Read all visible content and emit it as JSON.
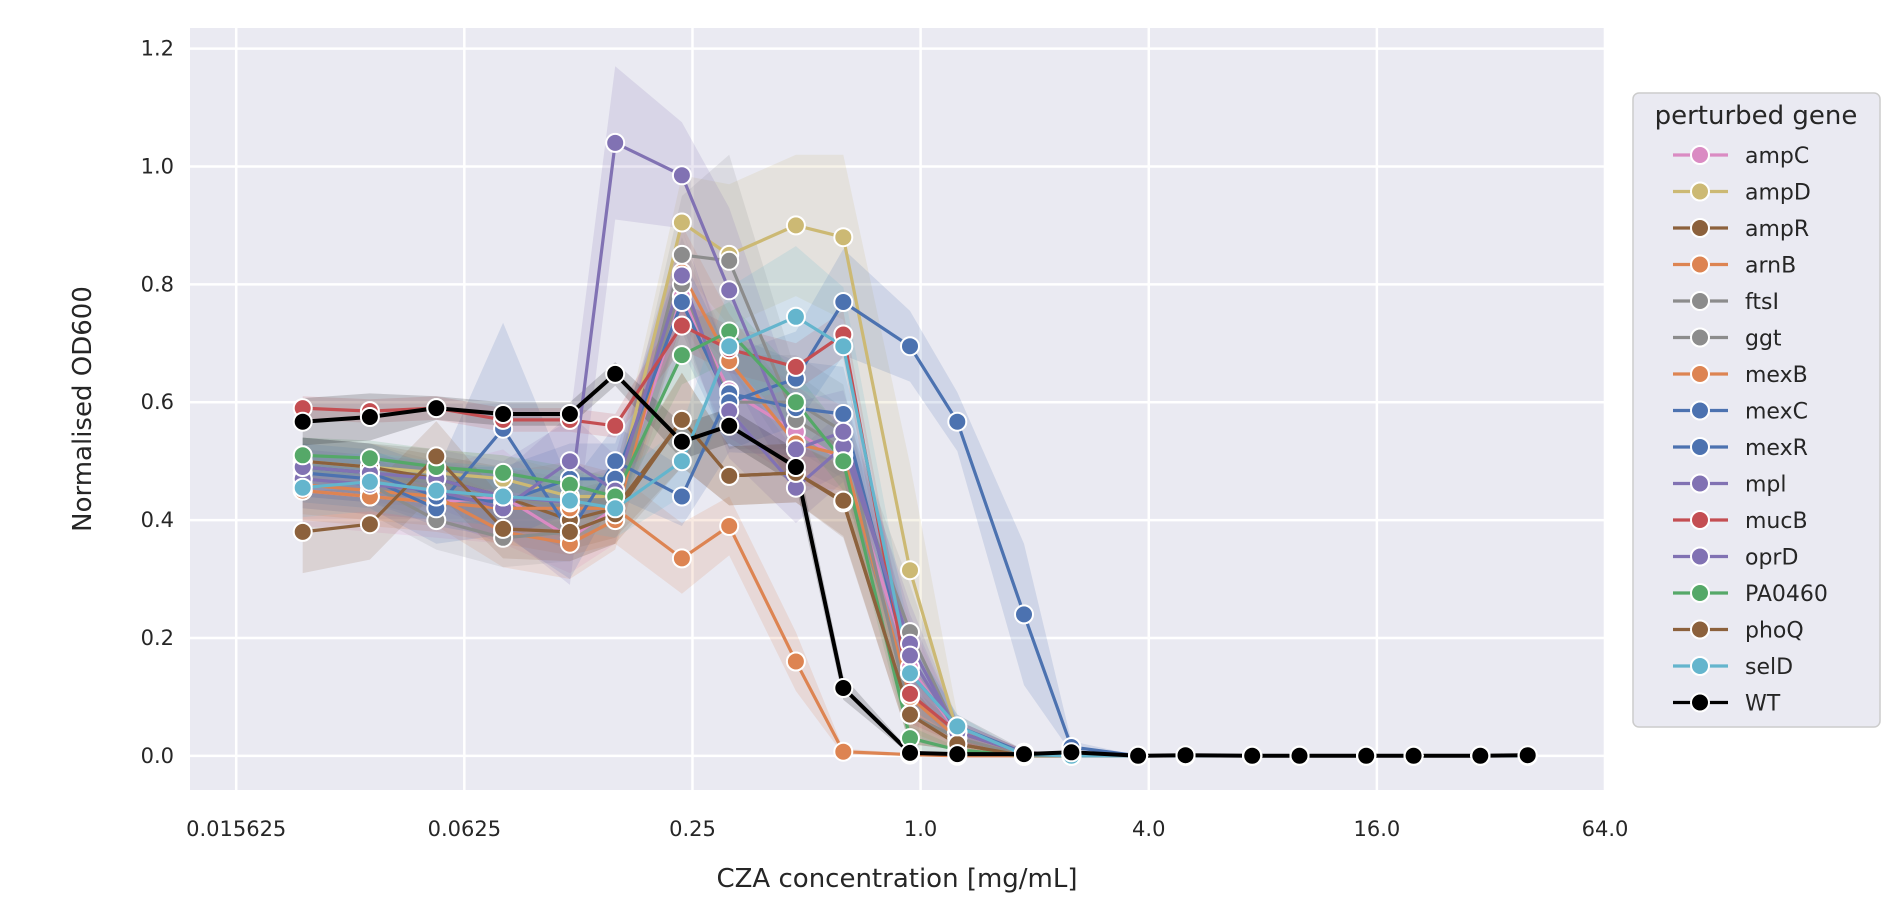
{
  "chart_data": {
    "type": "line",
    "title": "",
    "xlabel": "CZA concentration [mg/mL]",
    "ylabel": "Normalised OD600",
    "x_scale": "log2",
    "xlim": [
      0.0118,
      64
    ],
    "ylim": [
      -0.058,
      1.235
    ],
    "x_ticks": [
      0.015625,
      0.0625,
      0.25,
      1.0,
      4.0,
      16.0,
      64.0
    ],
    "x_tick_labels": [
      "0.015625",
      "0.0625",
      "0.25",
      "1.0",
      "4.0",
      "16.0",
      "64.0"
    ],
    "y_ticks": [
      0.0,
      0.2,
      0.4,
      0.6,
      0.8,
      1.0,
      1.2
    ],
    "y_tick_labels": [
      "0.0",
      "0.2",
      "0.4",
      "0.6",
      "0.8",
      "1.0",
      "1.2"
    ],
    "grid": true,
    "background": "#eaeaf2",
    "legend": {
      "title": "perturbed gene",
      "placement": "right, outside plot"
    },
    "x": [
      0.0234,
      0.0352,
      0.0527,
      0.0791,
      0.1187,
      0.1563,
      0.2344,
      0.3125,
      0.4688,
      0.625,
      0.9375,
      1.25,
      1.875,
      2.5,
      3.75,
      5.0,
      7.5,
      10.0,
      15.0,
      20.0,
      30.0,
      40.0
    ],
    "series": [
      {
        "name": "ampC",
        "color": "#da8bc3",
        "values": [
          0.45,
          0.44,
          0.43,
          0.44,
          0.37,
          0.42,
          0.78,
          0.62,
          0.55,
          0.5,
          0.15,
          0.04,
          0.005,
          0.0,
          0.0,
          0.0,
          0.0,
          0.0,
          0.0,
          0.0,
          0.0,
          0.0
        ],
        "band": [
          0.06,
          0.06,
          0.06,
          0.08,
          0.06,
          0.06,
          0.08,
          0.08,
          0.08,
          0.06,
          0.08,
          0.02,
          0.005,
          0.0,
          0.0,
          0.0,
          0.0,
          0.0,
          0.0,
          0.0,
          0.0,
          0.0
        ]
      },
      {
        "name": "ampD",
        "color": "#ccb974",
        "values": [
          0.5,
          0.49,
          0.48,
          0.47,
          0.44,
          0.44,
          0.905,
          0.85,
          0.9,
          0.88,
          0.315,
          0.04,
          0.005,
          0.0,
          0.0,
          0.0,
          0.0,
          0.0,
          0.0,
          0.0,
          0.0,
          0.0
        ],
        "band": [
          0.04,
          0.04,
          0.04,
          0.04,
          0.04,
          0.04,
          0.08,
          0.12,
          0.12,
          0.14,
          0.18,
          0.03,
          0.005,
          0.0,
          0.0,
          0.0,
          0.0,
          0.0,
          0.0,
          0.0,
          0.0,
          0.0
        ]
      },
      {
        "name": "ampR",
        "color": "#8c613c",
        "values": [
          0.5,
          0.49,
          0.47,
          0.44,
          0.4,
          0.42,
          0.57,
          0.475,
          0.48,
          0.43,
          0.07,
          0.02,
          0.0,
          0.0,
          0.0,
          0.0,
          0.0,
          0.0,
          0.0,
          0.0,
          0.0,
          0.0
        ],
        "band": [
          0.04,
          0.04,
          0.04,
          0.05,
          0.05,
          0.05,
          0.08,
          0.05,
          0.05,
          0.06,
          0.05,
          0.01,
          0.0,
          0.0,
          0.0,
          0.0,
          0.0,
          0.0,
          0.0,
          0.0,
          0.0,
          0.0
        ]
      },
      {
        "name": "arnB",
        "color": "#dd8452",
        "values": [
          0.46,
          0.45,
          0.44,
          0.38,
          0.36,
          0.4,
          0.82,
          0.67,
          0.53,
          0.51,
          0.1,
          0.03,
          0.0,
          0.0,
          0.0,
          0.0,
          0.0,
          0.0,
          0.0,
          0.0,
          0.0,
          0.0
        ],
        "band": [
          0.05,
          0.05,
          0.05,
          0.06,
          0.06,
          0.05,
          0.08,
          0.08,
          0.07,
          0.06,
          0.06,
          0.02,
          0.0,
          0.0,
          0.0,
          0.0,
          0.0,
          0.0,
          0.0,
          0.0,
          0.0,
          0.0
        ]
      },
      {
        "name": "ftsI",
        "color": "#8c8c8c",
        "values": [
          0.47,
          0.46,
          0.4,
          0.37,
          0.38,
          0.41,
          0.85,
          0.84,
          0.57,
          0.52,
          0.21,
          0.04,
          0.005,
          0.0,
          0.0,
          0.0,
          0.0,
          0.0,
          0.0,
          0.0,
          0.0,
          0.0
        ],
        "band": [
          0.05,
          0.05,
          0.05,
          0.05,
          0.05,
          0.05,
          0.1,
          0.18,
          0.08,
          0.07,
          0.08,
          0.02,
          0.005,
          0.0,
          0.0,
          0.0,
          0.0,
          0.0,
          0.0,
          0.0,
          0.0,
          0.0
        ]
      },
      {
        "name": "ggt",
        "color": "#8c8c8c",
        "values": [
          0.49,
          0.48,
          0.45,
          0.44,
          0.42,
          0.44,
          0.8,
          0.6,
          0.6,
          0.55,
          0.07,
          0.03,
          0.0,
          0.0,
          0.0,
          0.0,
          0.0,
          0.0,
          0.0,
          0.0,
          0.0,
          0.0
        ],
        "band": [
          0.05,
          0.05,
          0.05,
          0.05,
          0.05,
          0.05,
          0.08,
          0.08,
          0.08,
          0.08,
          0.05,
          0.02,
          0.0,
          0.0,
          0.0,
          0.0,
          0.0,
          0.0,
          0.0,
          0.0,
          0.0,
          0.0
        ]
      },
      {
        "name": "mexB",
        "color": "#dd8452",
        "values": [
          0.45,
          0.44,
          0.43,
          0.42,
          0.42,
          0.42,
          0.335,
          0.39,
          0.16,
          0.007,
          0.002,
          0.0,
          0.0,
          0.0,
          0.0,
          0.0,
          0.0,
          0.0,
          0.0,
          0.0,
          0.0,
          0.0
        ],
        "band": [
          0.05,
          0.05,
          0.05,
          0.06,
          0.08,
          0.06,
          0.06,
          0.05,
          0.05,
          0.005,
          0.002,
          0.0,
          0.0,
          0.0,
          0.0,
          0.0,
          0.0,
          0.0,
          0.0,
          0.0,
          0.0,
          0.0
        ]
      },
      {
        "name": "mexC",
        "color": "#4c72b0",
        "values": [
          0.48,
          0.47,
          0.42,
          0.555,
          0.38,
          0.5,
          0.44,
          0.615,
          0.59,
          0.58,
          0.14,
          0.05,
          0.005,
          0.0,
          0.0,
          0.0,
          0.0,
          0.0,
          0.0,
          0.0,
          0.0,
          0.0
        ],
        "band": [
          0.05,
          0.05,
          0.06,
          0.18,
          0.08,
          0.06,
          0.05,
          0.1,
          0.08,
          0.08,
          0.06,
          0.02,
          0.005,
          0.0,
          0.0,
          0.0,
          0.0,
          0.0,
          0.0,
          0.0,
          0.0,
          0.0
        ]
      },
      {
        "name": "mexR",
        "color": "#4c72b0",
        "values": [
          0.49,
          0.48,
          0.44,
          0.43,
          0.47,
          0.47,
          0.77,
          0.6,
          0.64,
          0.77,
          0.695,
          0.567,
          0.24,
          0.015,
          0.0,
          0.0,
          0.0,
          0.0,
          0.0,
          0.0,
          0.0,
          0.0
        ],
        "band": [
          0.05,
          0.05,
          0.05,
          0.06,
          0.06,
          0.06,
          0.08,
          0.08,
          0.08,
          0.09,
          0.06,
          0.05,
          0.12,
          0.01,
          0.0,
          0.0,
          0.0,
          0.0,
          0.0,
          0.0,
          0.0,
          0.0
        ]
      },
      {
        "name": "mpl",
        "color": "#8172b3",
        "values": [
          0.47,
          0.46,
          0.45,
          0.42,
          0.5,
          0.45,
          0.815,
          0.585,
          0.455,
          0.525,
          0.19,
          0.04,
          0.005,
          0.0,
          0.0,
          0.0,
          0.0,
          0.0,
          0.0,
          0.0,
          0.0,
          0.0
        ],
        "band": [
          0.05,
          0.05,
          0.05,
          0.06,
          0.08,
          0.06,
          0.08,
          0.08,
          0.06,
          0.06,
          0.07,
          0.02,
          0.005,
          0.0,
          0.0,
          0.0,
          0.0,
          0.0,
          0.0,
          0.0,
          0.0,
          0.0
        ]
      },
      {
        "name": "mucB",
        "color": "#c44e52",
        "values": [
          0.59,
          0.585,
          0.59,
          0.57,
          0.57,
          0.56,
          0.73,
          0.69,
          0.66,
          0.715,
          0.105,
          0.04,
          0.005,
          0.0,
          0.0,
          0.0,
          0.0,
          0.0,
          0.0,
          0.0,
          0.0,
          0.0
        ],
        "band": [
          0.02,
          0.02,
          0.02,
          0.02,
          0.02,
          0.02,
          0.04,
          0.04,
          0.04,
          0.04,
          0.05,
          0.02,
          0.005,
          0.0,
          0.0,
          0.0,
          0.0,
          0.0,
          0.0,
          0.0,
          0.0,
          0.0
        ]
      },
      {
        "name": "oprD",
        "color": "#8172b3",
        "values": [
          0.49,
          0.48,
          0.47,
          0.44,
          0.43,
          1.04,
          0.985,
          0.79,
          0.52,
          0.55,
          0.17,
          0.04,
          0.005,
          0.0,
          0.0,
          0.0,
          0.0,
          0.0,
          0.0,
          0.0,
          0.0,
          0.0
        ],
        "band": [
          0.05,
          0.05,
          0.05,
          0.06,
          0.14,
          0.13,
          0.09,
          0.14,
          0.08,
          0.07,
          0.07,
          0.02,
          0.005,
          0.0,
          0.0,
          0.0,
          0.0,
          0.0,
          0.0,
          0.0,
          0.0,
          0.0
        ]
      },
      {
        "name": "PA0460",
        "color": "#55a868",
        "values": [
          0.51,
          0.505,
          0.49,
          0.48,
          0.46,
          0.44,
          0.68,
          0.72,
          0.6,
          0.5,
          0.03,
          0.01,
          0.0,
          0.0,
          0.0,
          0.0,
          0.0,
          0.0,
          0.0,
          0.0,
          0.0,
          0.0
        ],
        "band": [
          0.03,
          0.03,
          0.03,
          0.03,
          0.03,
          0.03,
          0.05,
          0.05,
          0.05,
          0.05,
          0.02,
          0.005,
          0.0,
          0.0,
          0.0,
          0.0,
          0.0,
          0.0,
          0.0,
          0.0,
          0.0,
          0.0
        ]
      },
      {
        "name": "phoQ",
        "color": "#8c613c",
        "values": [
          0.38,
          0.393,
          0.508,
          0.385,
          0.38,
          0.41,
          0.57,
          0.475,
          0.48,
          0.433,
          0.07,
          0.02,
          0.0,
          0.0,
          0.0,
          0.0,
          0.0,
          0.0,
          0.0,
          0.0,
          0.0,
          0.0
        ],
        "band": [
          0.07,
          0.06,
          0.06,
          0.05,
          0.05,
          0.05,
          0.08,
          0.05,
          0.05,
          0.06,
          0.05,
          0.01,
          0.0,
          0.0,
          0.0,
          0.0,
          0.0,
          0.0,
          0.0,
          0.0,
          0.0,
          0.0
        ]
      },
      {
        "name": "selD",
        "color": "#64b5cd",
        "values": [
          0.455,
          0.465,
          0.45,
          0.44,
          0.433,
          0.42,
          0.5,
          0.695,
          0.745,
          0.695,
          0.14,
          0.05,
          0.002,
          0.0,
          0.0,
          0.0,
          0.0,
          0.0,
          0.0,
          0.0,
          0.0,
          0.0
        ],
        "band": [
          0.05,
          0.05,
          0.05,
          0.05,
          0.05,
          0.05,
          0.06,
          0.1,
          0.12,
          0.1,
          0.06,
          0.02,
          0.002,
          0.0,
          0.0,
          0.0,
          0.0,
          0.0,
          0.0,
          0.0,
          0.0,
          0.0
        ]
      },
      {
        "name": "WT",
        "color": "#000000",
        "values": [
          0.567,
          0.575,
          0.59,
          0.58,
          0.58,
          0.648,
          0.533,
          0.56,
          0.49,
          0.115,
          0.005,
          0.003,
          0.003,
          0.006,
          0.0,
          0.001,
          0.0,
          0.0,
          0.0,
          0.0,
          0.0,
          0.001
        ],
        "band": [
          0.04,
          0.04,
          0.02,
          0.02,
          0.02,
          0.02,
          0.03,
          0.03,
          0.03,
          0.02,
          0.003,
          0.002,
          0.002,
          0.003,
          0.0,
          0.001,
          0.0,
          0.0,
          0.0,
          0.0,
          0.0,
          0.001
        ]
      }
    ]
  }
}
